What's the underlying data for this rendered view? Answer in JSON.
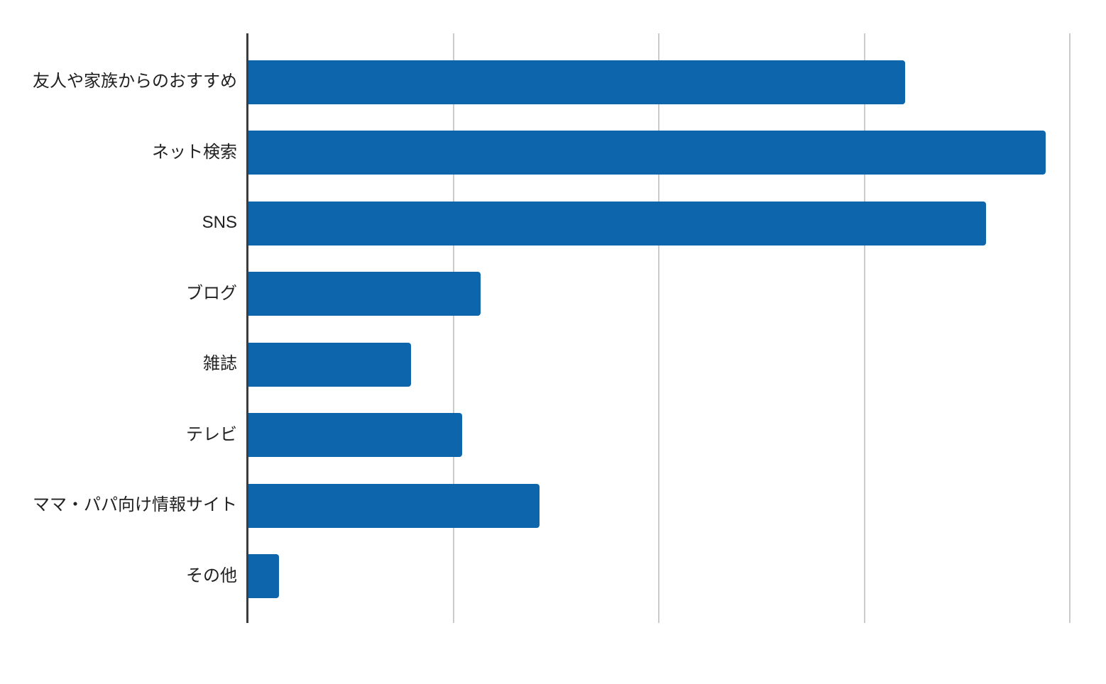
{
  "chart_data": {
    "type": "bar",
    "orientation": "horizontal",
    "title": "",
    "xlabel": "",
    "ylabel": "",
    "categories": [
      "友人や家族からのおすすめ",
      "ネット検索",
      "SNS",
      "ブログ",
      "雑誌",
      "テレビ",
      "ママ・パパ向け情報サイト",
      "その他"
    ],
    "series": [
      {
        "name": "",
        "values": [
          63.9,
          77.6,
          71.8,
          22.6,
          15.8,
          20.8,
          28.3,
          3.0
        ]
      }
    ],
    "xlim": [
      0,
      83.5
    ],
    "xticks": [
      0,
      20,
      40,
      60,
      80
    ],
    "xtick_labels_visible": false,
    "value_labels_visible": false,
    "grid": "vertical",
    "legend_position": "none",
    "colors": {
      "bar": "#0d65ac",
      "axis_line": "#3c3c3c",
      "gridline": "#cccccc",
      "label_text": "#212121",
      "background": "#ffffff"
    }
  }
}
